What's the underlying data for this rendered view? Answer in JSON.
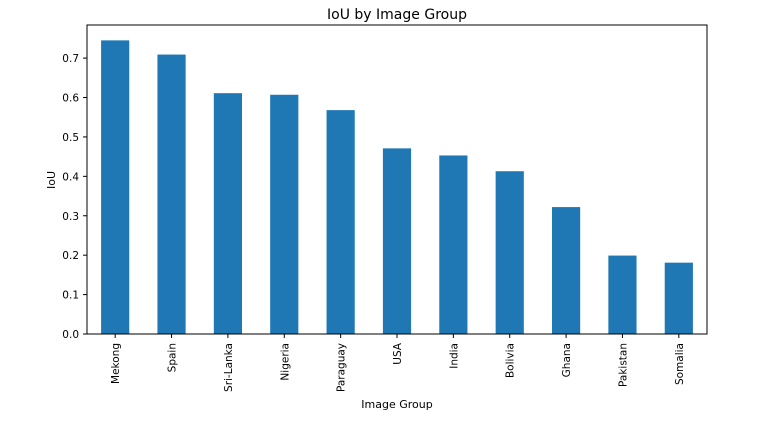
{
  "chart_data": {
    "type": "bar",
    "title": "IoU by Image Group",
    "xlabel": "Image Group",
    "ylabel": "IoU",
    "categories": [
      "Mekong",
      "Spain",
      "Sri-Lanka",
      "Nigeria",
      "Paraguay",
      "USA",
      "India",
      "Bolivia",
      "Ghana",
      "Pakistan",
      "Somalia"
    ],
    "values": [
      0.745,
      0.709,
      0.611,
      0.607,
      0.568,
      0.471,
      0.453,
      0.413,
      0.322,
      0.199,
      0.181
    ],
    "yticks": [
      "0.0",
      "0.1",
      "0.2",
      "0.3",
      "0.4",
      "0.5",
      "0.6",
      "0.7"
    ],
    "ylim": [
      0,
      0.784
    ],
    "grid": false,
    "legend": "none",
    "colors": {
      "bar": "#1f77b4",
      "axis": "#000000",
      "background": "#ffffff"
    }
  }
}
